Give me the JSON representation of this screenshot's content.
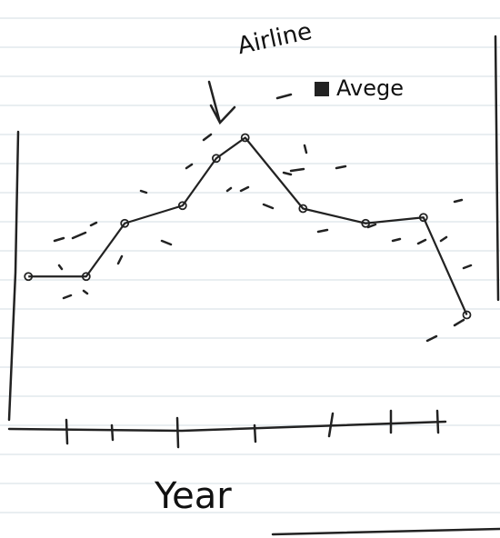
{
  "chart_data": {
    "type": "line",
    "annotation": "Airline",
    "x_label": "Year",
    "x": [
      4,
      16,
      24,
      36,
      43,
      49,
      61,
      74,
      86,
      95
    ],
    "xlim": [
      0,
      100
    ],
    "ylim": [
      0,
      100
    ],
    "series": [
      {
        "name": "Avege",
        "color": "#222222",
        "values": [
          51,
          51,
          69,
          75,
          91,
          98,
          74,
          69,
          71,
          38
        ]
      }
    ],
    "legend": "upper right"
  }
}
